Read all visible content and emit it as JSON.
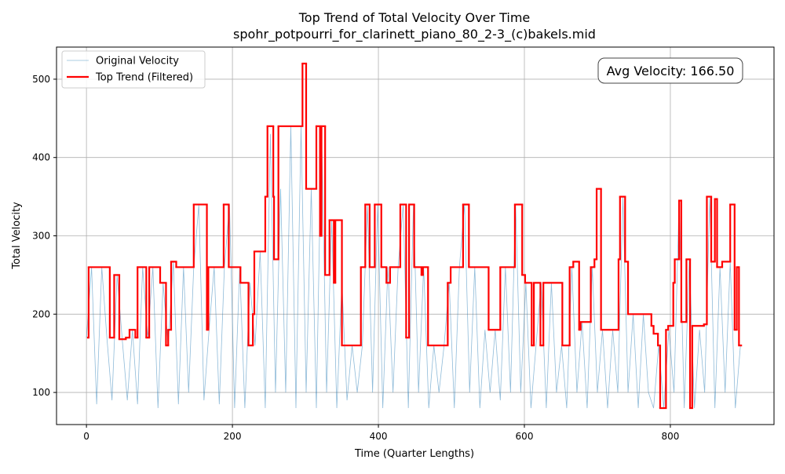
{
  "chart_data": {
    "type": "line",
    "title": "Top Trend of Total Velocity Over Time",
    "subtitle": "spohr_potpourri_for_clarinett_piano_80_2-3_(c)bakels.mid",
    "x_label": "Time (Quarter Lengths)",
    "y_label": "Total Velocity",
    "annotation": "Avg Velocity: 166.50",
    "xlim": [
      -41,
      942
    ],
    "ylim": [
      59,
      541
    ],
    "xticks": [
      0,
      200,
      400,
      600,
      800
    ],
    "yticks": [
      100,
      200,
      300,
      400,
      500
    ],
    "grid": true,
    "legend": "upper left",
    "series": [
      {
        "name": "Original Velocity",
        "color": "#1f77b4",
        "drawstyle": "line",
        "x": [
          0,
          7,
          14,
          21,
          28,
          35,
          42,
          49,
          56,
          63,
          70,
          77,
          84,
          91,
          98,
          105,
          112,
          119,
          126,
          133,
          140,
          147,
          154,
          161,
          168,
          175,
          182,
          189,
          196,
          203,
          210,
          217,
          224,
          231,
          238,
          245,
          252,
          259,
          266,
          273,
          280,
          287,
          294,
          301,
          308,
          315,
          322,
          329,
          336,
          343,
          350,
          357,
          364,
          371,
          378,
          385,
          392,
          399,
          406,
          413,
          420,
          427,
          434,
          441,
          448,
          455,
          462,
          469,
          476,
          483,
          490,
          497,
          504,
          511,
          518,
          525,
          532,
          539,
          546,
          553,
          560,
          567,
          574,
          581,
          588,
          595,
          602,
          609,
          616,
          623,
          630,
          637,
          644,
          651,
          658,
          665,
          672,
          679,
          686,
          693,
          700,
          707,
          714,
          721,
          728,
          735,
          742,
          749,
          756,
          763,
          770,
          777,
          784,
          791,
          798,
          805,
          812,
          819,
          826,
          833,
          840,
          847,
          854,
          861,
          868,
          875,
          882,
          889,
          896
        ],
        "values": [
          170,
          260,
          85,
          260,
          170,
          90,
          250,
          168,
          90,
          180,
          85,
          260,
          170,
          260,
          80,
          240,
          160,
          267,
          85,
          260,
          100,
          260,
          340,
          90,
          180,
          260,
          85,
          260,
          340,
          80,
          260,
          80,
          240,
          160,
          280,
          80,
          430,
          100,
          360,
          100,
          440,
          80,
          440,
          100,
          360,
          80,
          440,
          100,
          320,
          80,
          240,
          90,
          160,
          100,
          160,
          340,
          100,
          340,
          80,
          260,
          100,
          260,
          340,
          80,
          340,
          100,
          260,
          80,
          160,
          100,
          160,
          240,
          80,
          260,
          340,
          100,
          260,
          80,
          180,
          100,
          180,
          90,
          260,
          100,
          340,
          100,
          240,
          80,
          160,
          240,
          80,
          240,
          100,
          160,
          80,
          260,
          100,
          190,
          80,
          260,
          100,
          180,
          80,
          180,
          100,
          350,
          100,
          200,
          80,
          200,
          100,
          80,
          160,
          80,
          180,
          100,
          345,
          80,
          270,
          80,
          180,
          100,
          350,
          80,
          260,
          100,
          267,
          80,
          160
        ]
      },
      {
        "name": "Top Trend (Filtered)",
        "color": "#ff0000",
        "drawstyle": "steps-post",
        "x": [
          2,
          3,
          32,
          38,
          45,
          54,
          59,
          67,
          70,
          82,
          86,
          101,
          109,
          112,
          116,
          123,
          147,
          165,
          167,
          188,
          195,
          211,
          222,
          228,
          230,
          245,
          248,
          256,
          257,
          263,
          296,
          301,
          315,
          320,
          322,
          327,
          333,
          339,
          341,
          350,
          376,
          382,
          388,
          395,
          404,
          411,
          416,
          430,
          438,
          442,
          449,
          459,
          461,
          468,
          495,
          499,
          516,
          524,
          551,
          567,
          587,
          597,
          601,
          610,
          613,
          622,
          626,
          652,
          662,
          667,
          675,
          677,
          691,
          696,
          699,
          705,
          729,
          731,
          738,
          742,
          774,
          777,
          783,
          786,
          794,
          797,
          804,
          806,
          812,
          815,
          822,
          827,
          830,
          846,
          850,
          856,
          861,
          864,
          871,
          882,
          888,
          891,
          894,
          897
        ],
        "values": [
          170,
          260,
          170,
          250,
          168,
          170,
          180,
          170,
          260,
          170,
          260,
          240,
          160,
          180,
          267,
          260,
          340,
          180,
          260,
          340,
          260,
          240,
          160,
          200,
          280,
          350,
          440,
          350,
          270,
          440,
          520,
          360,
          440,
          300,
          440,
          250,
          320,
          240,
          320,
          160,
          260,
          340,
          260,
          340,
          260,
          240,
          260,
          340,
          170,
          340,
          260,
          250,
          260,
          160,
          240,
          260,
          340,
          260,
          180,
          260,
          340,
          250,
          240,
          160,
          240,
          160,
          240,
          160,
          260,
          267,
          180,
          190,
          260,
          270,
          360,
          180,
          270,
          350,
          267,
          200,
          185,
          175,
          160,
          80,
          180,
          185,
          240,
          270,
          345,
          190,
          270,
          80,
          185,
          187,
          350,
          267,
          347,
          260,
          267,
          340,
          180,
          260,
          160,
          160
        ]
      }
    ]
  }
}
